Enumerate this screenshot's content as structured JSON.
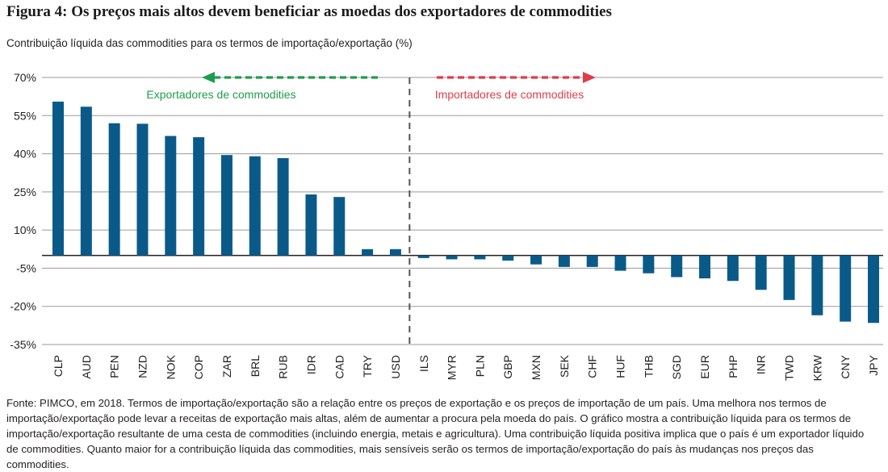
{
  "figure": {
    "title": "Figura 4: Os preços mais altos devem beneficiar as moedas dos exportadores de commodities",
    "subtitle": "Contribuição líquida das commodities para os termos de importação/exportação (%)",
    "source": "Fonte: PIMCO, em 2018. Termos de importação/exportação são a relação entre os preços de exportação e os preços de importação de um país. Uma melhora nos termos de importação/exportação pode levar a receitas de exportação mais altas, além de aumentar a procura pela moeda do país. O gráfico mostra a contribuição líquida para os termos de importação/exportação resultante de uma cesta de commodities (incluindo energia, metais e agricultura). Uma contribuição líquida positiva implica que o país é um exportador líquido de commodities. Quanto maior for a contribuição líquida das commodities, mais sensíveis serão os termos de importação/exportação do país às mudanças nos preços das commodities."
  },
  "chart_data": {
    "type": "bar",
    "title": "Figura 4: Os preços mais altos devem beneficiar as moedas dos exportadores de commodities",
    "ylabel": "Contribuição líquida das commodities para os termos de importação/exportação (%)",
    "xlabel": "",
    "ylim": [
      -35,
      70
    ],
    "yticks": [
      70,
      55,
      40,
      25,
      10,
      -5,
      -20,
      -35
    ],
    "ytick_labels": [
      "70%",
      "55%",
      "40%",
      "25%",
      "10%",
      "-5%",
      "-20%",
      "-35%"
    ],
    "grid": true,
    "categories": [
      "CLP",
      "AUD",
      "PEN",
      "NZD",
      "NOK",
      "COP",
      "ZAR",
      "BRL",
      "RUB",
      "IDR",
      "CAD",
      "TRY",
      "USD",
      "ILS",
      "MYR",
      "PLN",
      "GBP",
      "MXN",
      "SEK",
      "CHF",
      "HUF",
      "THB",
      "SGD",
      "EUR",
      "PHP",
      "INR",
      "TWD",
      "KRW",
      "CNY",
      "JPY"
    ],
    "values": [
      60.5,
      58.5,
      52,
      51.8,
      47,
      46.5,
      39.5,
      39,
      38.3,
      24,
      23,
      2.5,
      2.5,
      -1,
      -1.5,
      -1.5,
      -2,
      -3.5,
      -4.5,
      -4.5,
      -6,
      -7,
      -8.5,
      -9,
      -10,
      -13.5,
      -17.5,
      -23.5,
      -26,
      -26.5
    ],
    "bar_color": "#0a5a89",
    "annotations": {
      "left_label": "Exportadores de commodities",
      "left_color": "#1e9d4b",
      "right_label": "Importadores de commodities",
      "right_color": "#e03c4a",
      "divider_between": [
        "USD",
        "ILS"
      ]
    }
  }
}
